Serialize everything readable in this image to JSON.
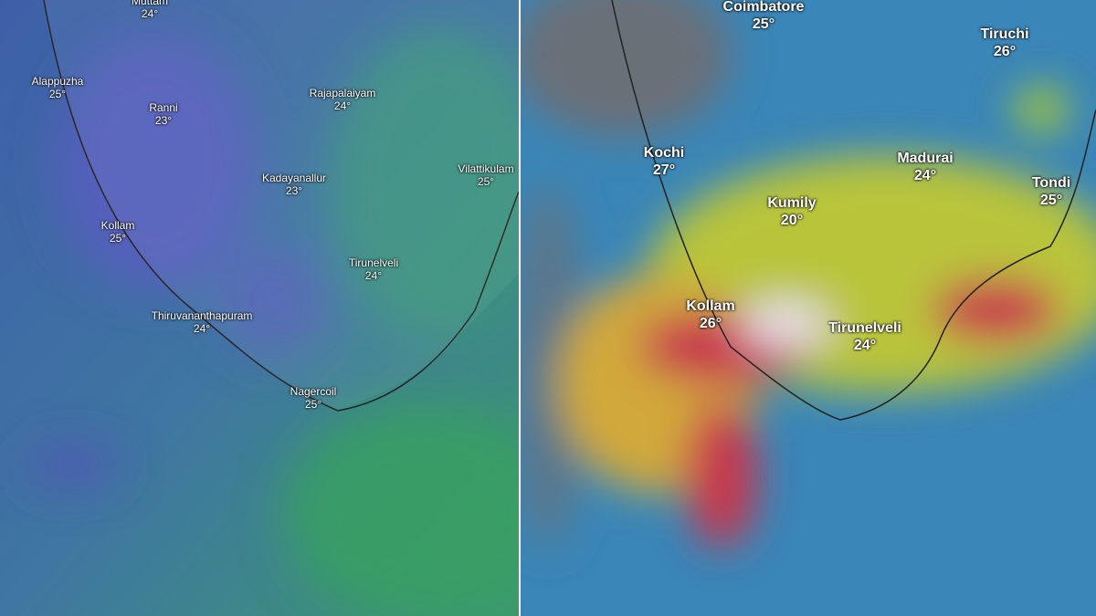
{
  "panels": [
    {
      "labels": [
        {
          "city": "Muttam",
          "temp": "24°"
        },
        {
          "city": "Alappuzha",
          "temp": "25°"
        },
        {
          "city": "Ranni",
          "temp": "23°"
        },
        {
          "city": "Rajapalaiyam",
          "temp": "24°"
        },
        {
          "city": "Kadayanallur",
          "temp": "23°"
        },
        {
          "city": "Vilattikulam",
          "temp": "25°"
        },
        {
          "city": "Kollam",
          "temp": "25°"
        },
        {
          "city": "Tirunelveli",
          "temp": "24°"
        },
        {
          "city": "Thiruvananthapuram",
          "temp": "24°"
        },
        {
          "city": "Nagercoil",
          "temp": "25°"
        }
      ]
    },
    {
      "labels": [
        {
          "city": "Coimbatore",
          "temp": "25°"
        },
        {
          "city": "Tiruchi",
          "temp": "26°"
        },
        {
          "city": "Kochi",
          "temp": "27°"
        },
        {
          "city": "Madurai",
          "temp": "24°"
        },
        {
          "city": "Tondi",
          "temp": "25°"
        },
        {
          "city": "Kumily",
          "temp": "20°"
        },
        {
          "city": "Kollam",
          "temp": "26°"
        },
        {
          "city": "Tirunelveli",
          "temp": "24°"
        }
      ]
    }
  ]
}
